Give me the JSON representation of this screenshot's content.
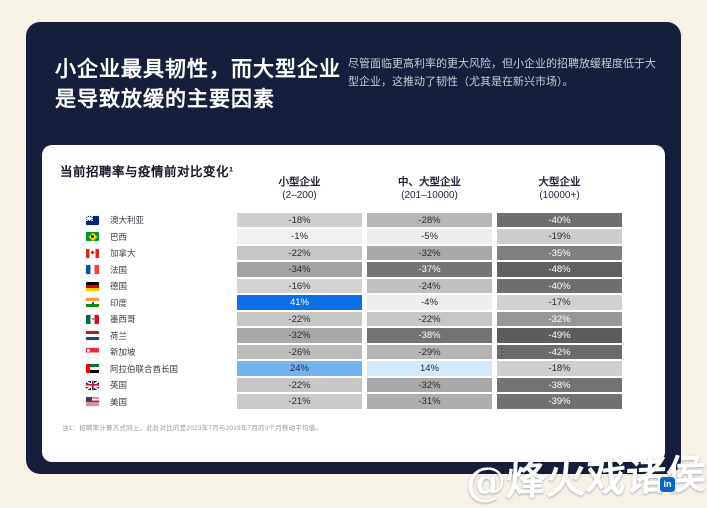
{
  "background_color": "#f7f2e8",
  "panel": {
    "bg_color": "#151f3b",
    "title_line1": "小企业最具韧性，而大型企业",
    "title_line2": "是导致放缓的主要因素",
    "subtitle": "尽管面临更高利率的更大风险，但小企业的招聘放缓程度低于大型企业，这推动了韧性（尤其是在新兴市场）。"
  },
  "card": {
    "footnote": "注1：招聘率计算方式同上，此处对比的是2023年7月与2019年7月的3个月移动平均值。"
  },
  "chart_data": {
    "type": "heatmap",
    "title": "当前招聘率与疫情前对比变化¹",
    "unit": "%",
    "positive_color": "#0d6fe4",
    "negative_scale": "gray (darker = larger decline)",
    "columns": [
      {
        "label": "小型企业",
        "sublabel": "(2–200)"
      },
      {
        "label": "中、大型企业",
        "sublabel": "(201–10000)"
      },
      {
        "label": "大型企业",
        "sublabel": "(10000+)"
      }
    ],
    "rows": [
      {
        "country": "澳大利亚",
        "flag": "au",
        "values": [
          -18,
          -28,
          -40
        ],
        "cells": [
          {
            "value": "-18%",
            "bg": "#cfcfcf",
            "fg": "#2b2b2b"
          },
          {
            "value": "-28%",
            "bg": "#b7b7b7",
            "fg": "#2b2b2b"
          },
          {
            "value": "-40%",
            "bg": "#6f6f6f",
            "fg": "#ffffff"
          }
        ]
      },
      {
        "country": "巴西",
        "flag": "br",
        "values": [
          -1,
          -5,
          -19
        ],
        "cells": [
          {
            "value": "-1%",
            "bg": "#f1f1f1",
            "fg": "#2b2b2b"
          },
          {
            "value": "-5%",
            "bg": "#ededed",
            "fg": "#2b2b2b"
          },
          {
            "value": "-19%",
            "bg": "#cdcdcd",
            "fg": "#2b2b2b"
          }
        ]
      },
      {
        "country": "加拿大",
        "flag": "ca",
        "values": [
          -22,
          -32,
          -35
        ],
        "cells": [
          {
            "value": "-22%",
            "bg": "#c6c6c6",
            "fg": "#2b2b2b"
          },
          {
            "value": "-32%",
            "bg": "#a9a9a9",
            "fg": "#2b2b2b"
          },
          {
            "value": "-35%",
            "bg": "#7f7f7f",
            "fg": "#ffffff"
          }
        ]
      },
      {
        "country": "法国",
        "flag": "fr",
        "values": [
          -34,
          -37,
          -48
        ],
        "cells": [
          {
            "value": "-34%",
            "bg": "#a3a3a3",
            "fg": "#2b2b2b"
          },
          {
            "value": "-37%",
            "bg": "#757575",
            "fg": "#ffffff"
          },
          {
            "value": "-48%",
            "bg": "#606060",
            "fg": "#ffffff"
          }
        ]
      },
      {
        "country": "德国",
        "flag": "de",
        "values": [
          -16,
          -24,
          -40
        ],
        "cells": [
          {
            "value": "-16%",
            "bg": "#d3d3d3",
            "fg": "#2b2b2b"
          },
          {
            "value": "-24%",
            "bg": "#c0c0c0",
            "fg": "#2b2b2b"
          },
          {
            "value": "-40%",
            "bg": "#6f6f6f",
            "fg": "#ffffff"
          }
        ]
      },
      {
        "country": "印度",
        "flag": "in",
        "values": [
          41,
          -4,
          -17
        ],
        "cells": [
          {
            "value": "41%",
            "bg": "#0d6fe4",
            "fg": "#ffffff"
          },
          {
            "value": "-4%",
            "bg": "#eeeeee",
            "fg": "#2b2b2b"
          },
          {
            "value": "-17%",
            "bg": "#d1d1d1",
            "fg": "#2b2b2b"
          }
        ]
      },
      {
        "country": "墨西哥",
        "flag": "mx",
        "values": [
          -22,
          -22,
          -32
        ],
        "cells": [
          {
            "value": "-22%",
            "bg": "#c6c6c6",
            "fg": "#2b2b2b"
          },
          {
            "value": "-22%",
            "bg": "#c6c6c6",
            "fg": "#2b2b2b"
          },
          {
            "value": "-32%",
            "bg": "#979797",
            "fg": "#ffffff"
          }
        ]
      },
      {
        "country": "荷兰",
        "flag": "nl",
        "values": [
          -32,
          -38,
          -49
        ],
        "cells": [
          {
            "value": "-32%",
            "bg": "#a9a9a9",
            "fg": "#2b2b2b"
          },
          {
            "value": "-38%",
            "bg": "#737373",
            "fg": "#ffffff"
          },
          {
            "value": "-49%",
            "bg": "#5d5d5d",
            "fg": "#ffffff"
          }
        ]
      },
      {
        "country": "新加坡",
        "flag": "sg",
        "values": [
          -26,
          -29,
          -42
        ],
        "cells": [
          {
            "value": "-26%",
            "bg": "#bcbcbc",
            "fg": "#2b2b2b"
          },
          {
            "value": "-29%",
            "bg": "#b4b4b4",
            "fg": "#2b2b2b"
          },
          {
            "value": "-42%",
            "bg": "#6b6b6b",
            "fg": "#ffffff"
          }
        ]
      },
      {
        "country": "阿拉伯联合酋长国",
        "flag": "ae",
        "values": [
          24,
          14,
          -18
        ],
        "cells": [
          {
            "value": "24%",
            "bg": "#74b3ef",
            "fg": "#1d2a3a"
          },
          {
            "value": "14%",
            "bg": "#d4e8fb",
            "fg": "#2b2b2b"
          },
          {
            "value": "-18%",
            "bg": "#cfcfcf",
            "fg": "#2b2b2b"
          }
        ]
      },
      {
        "country": "英国",
        "flag": "gb",
        "values": [
          -22,
          -32,
          -38
        ],
        "cells": [
          {
            "value": "-22%",
            "bg": "#c6c6c6",
            "fg": "#2b2b2b"
          },
          {
            "value": "-32%",
            "bg": "#a9a9a9",
            "fg": "#2b2b2b"
          },
          {
            "value": "-38%",
            "bg": "#737373",
            "fg": "#ffffff"
          }
        ]
      },
      {
        "country": "美国",
        "flag": "us",
        "values": [
          -21,
          -31,
          -39
        ],
        "cells": [
          {
            "value": "-21%",
            "bg": "#c9c9c9",
            "fg": "#2b2b2b"
          },
          {
            "value": "-31%",
            "bg": "#aeaeae",
            "fg": "#2b2b2b"
          },
          {
            "value": "-39%",
            "bg": "#717171",
            "fg": "#ffffff"
          }
        ]
      }
    ]
  },
  "watermark": {
    "text": "@烽火戏诸侯",
    "linkedin_label": "in",
    "linkedin_color": "#0a66c2"
  }
}
